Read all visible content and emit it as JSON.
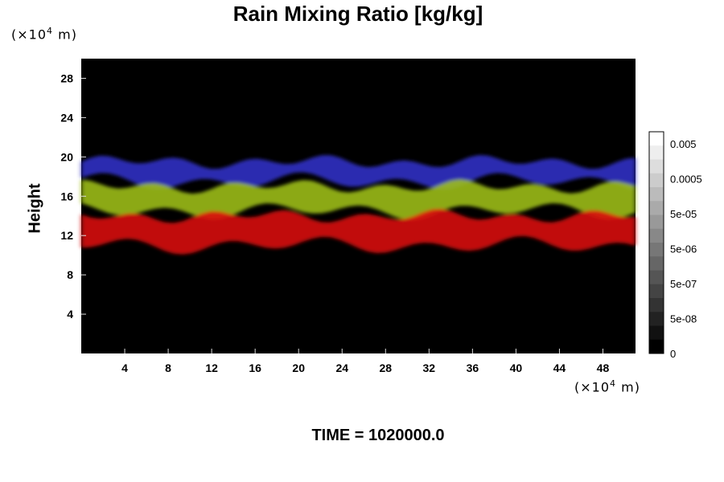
{
  "chart_data": {
    "type": "heatmap",
    "title": "Rain Mixing Ratio [kg/kg]",
    "ylabel": "Height",
    "x_unit": {
      "prefix": "(×10",
      "exp": "4",
      "suffix": " m)"
    },
    "y_unit": {
      "prefix": "(×10",
      "exp": "4",
      "suffix": " m)"
    },
    "xlim": [
      0,
      51
    ],
    "ylim": [
      0,
      30
    ],
    "x_ticks": [
      4,
      8,
      12,
      16,
      20,
      24,
      28,
      32,
      36,
      40,
      44,
      48
    ],
    "y_ticks": [
      4,
      8,
      12,
      16,
      20,
      24,
      28
    ],
    "colorbar": {
      "labels": [
        "0.005",
        "0.0005",
        "5e-05",
        "5e-06",
        "5e-07",
        "5e-08",
        "0"
      ],
      "levels": 16
    },
    "bands": [
      {
        "name": "blue",
        "color": "#3030c8",
        "y_top": 19.5,
        "y_bottom": 17.5
      },
      {
        "name": "green",
        "color": "#9fc018",
        "y_top": 17.0,
        "y_bottom": 14.5
      },
      {
        "name": "red",
        "color": "#dc0a0a",
        "y_top": 14.0,
        "y_bottom": 11.0
      }
    ],
    "time_label": "TIME = 1020000.0"
  }
}
